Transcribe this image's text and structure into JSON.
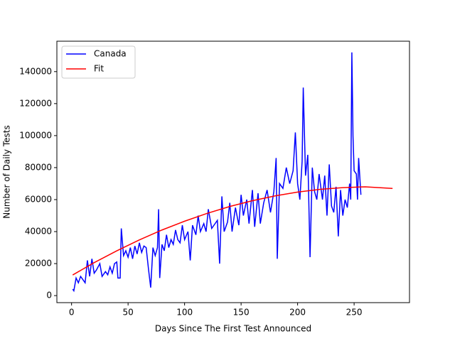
{
  "chart_data": {
    "type": "line",
    "x_label": "Days Since The First Test Announced",
    "y_label": "Number of Daily Tests",
    "xlim": [
      -13,
      299
    ],
    "ylim": [
      -4400,
      159000
    ],
    "xticks": [
      0,
      50,
      100,
      150,
      200,
      250
    ],
    "yticks": [
      0,
      20000,
      40000,
      60000,
      80000,
      100000,
      120000,
      140000
    ],
    "legend": "upper left",
    "series": [
      {
        "name": "Canada",
        "color": "#0000ff",
        "x": [
          1,
          2,
          4,
          6,
          8,
          10,
          12,
          14,
          16,
          18,
          20,
          22,
          25,
          27,
          30,
          32,
          34,
          36,
          38,
          40,
          41,
          43,
          44,
          46,
          48,
          50,
          52,
          54,
          56,
          58,
          60,
          62,
          64,
          66,
          68,
          70,
          72,
          74,
          76,
          77,
          78,
          80,
          82,
          84,
          86,
          88,
          90,
          92,
          94,
          96,
          98,
          100,
          103,
          105,
          107,
          110,
          112,
          114,
          117,
          119,
          121,
          124,
          126,
          129,
          131,
          133,
          135,
          138,
          140,
          142,
          145,
          148,
          150,
          152,
          155,
          157,
          160,
          162,
          165,
          167,
          170,
          173,
          176,
          179,
          181,
          182,
          184,
          187,
          190,
          193,
          196,
          198,
          200,
          202,
          204,
          205,
          207,
          209,
          211,
          213,
          215,
          217,
          219,
          222,
          224,
          226,
          228,
          230,
          232,
          234,
          236,
          238,
          240,
          242,
          244,
          246,
          247,
          248,
          249,
          250,
          252,
          253,
          254,
          256
        ],
        "values": [
          4000,
          3000,
          11000,
          8000,
          12000,
          10000,
          8000,
          22000,
          12000,
          23000,
          14000,
          16000,
          20000,
          12000,
          15000,
          13000,
          18000,
          14000,
          20000,
          21000,
          11000,
          11000,
          42000,
          25000,
          28000,
          24000,
          30000,
          23000,
          31000,
          26000,
          33000,
          27000,
          31000,
          30000,
          17000,
          5000,
          30000,
          25000,
          30000,
          54000,
          11000,
          32000,
          28000,
          38000,
          30000,
          35000,
          32000,
          41000,
          35000,
          33000,
          44000,
          35000,
          40000,
          22000,
          44000,
          38000,
          50000,
          40000,
          45000,
          40000,
          54000,
          42000,
          44000,
          47000,
          20000,
          62000,
          40000,
          46000,
          58000,
          40000,
          55000,
          44000,
          63000,
          50000,
          60000,
          45000,
          66000,
          43000,
          64000,
          45000,
          58000,
          66000,
          52000,
          65000,
          86000,
          23000,
          70000,
          67000,
          80000,
          70000,
          78000,
          102000,
          70000,
          60000,
          84000,
          130000,
          75000,
          88000,
          24000,
          80000,
          65000,
          60000,
          76000,
          60000,
          75000,
          50000,
          82000,
          56000,
          52000,
          68000,
          37000,
          66000,
          50000,
          60000,
          55000,
          70000,
          60000,
          152000,
          100000,
          78000,
          76000,
          60000,
          86000,
          63000
        ]
      },
      {
        "name": "Fit",
        "color": "#ff0000",
        "x": [
          1,
          20,
          40,
          60,
          80,
          100,
          120,
          140,
          160,
          180,
          200,
          220,
          240,
          260,
          284
        ],
        "values": [
          12900,
          20600,
          28000,
          34800,
          41000,
          46500,
          51400,
          55700,
          59300,
          62300,
          64700,
          66400,
          67500,
          68000,
          67000
        ]
      }
    ]
  }
}
